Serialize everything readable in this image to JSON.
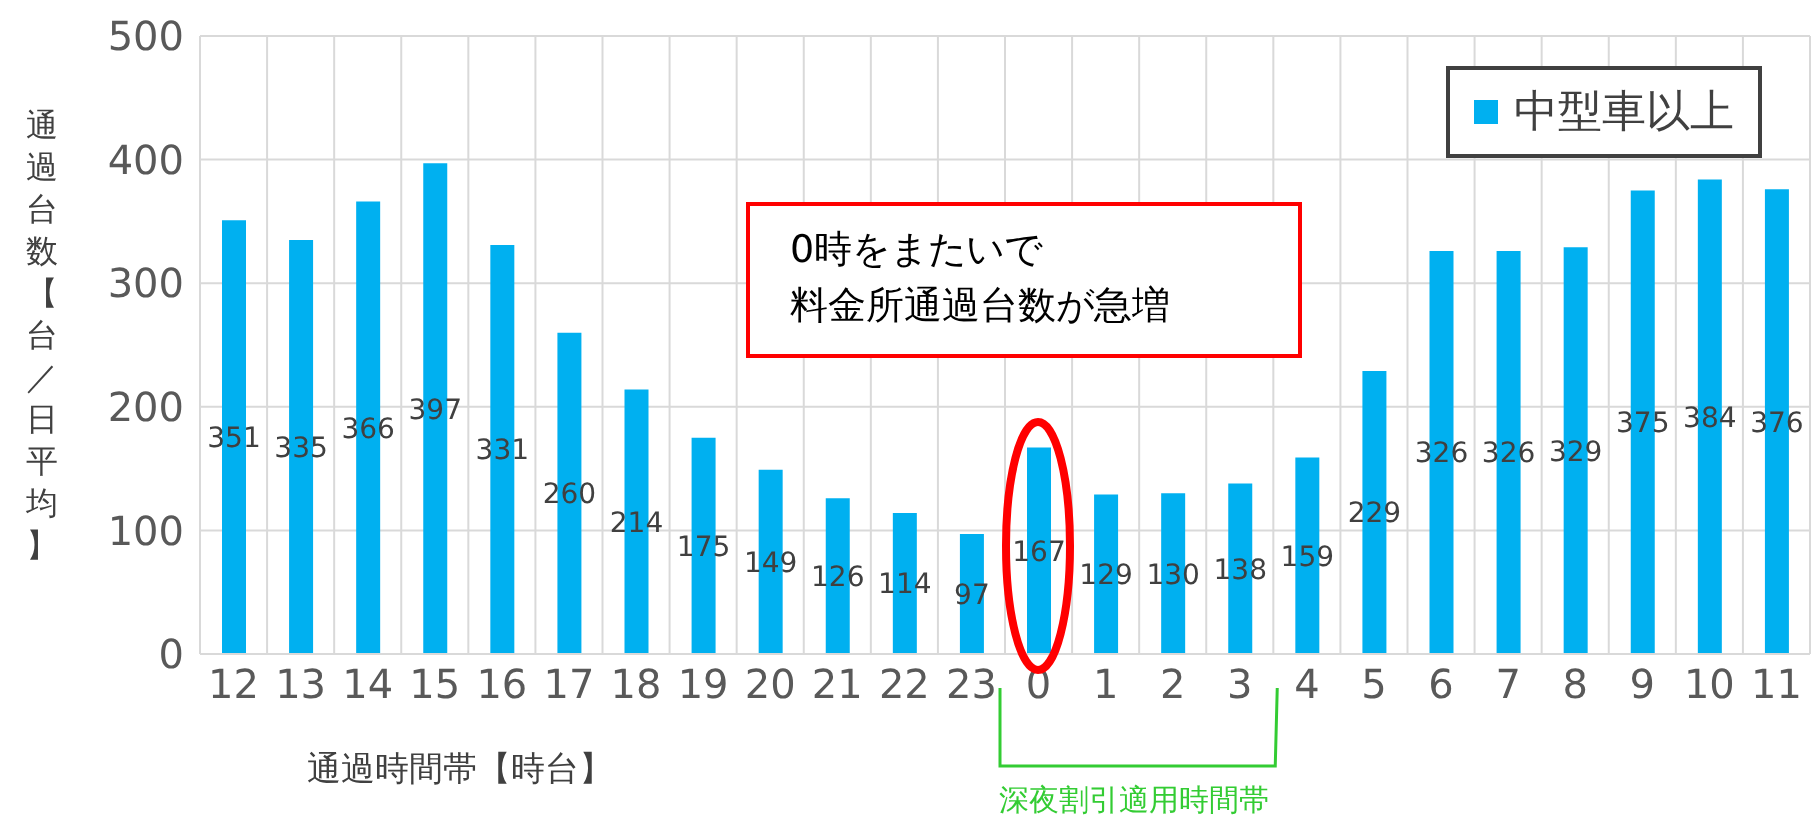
{
  "chart_data": {
    "type": "bar",
    "xlabel": "通過時間帯【時台】",
    "ylabel": "通過台数【台／日平均】",
    "categories": [
      "12",
      "13",
      "14",
      "15",
      "16",
      "17",
      "18",
      "19",
      "20",
      "21",
      "22",
      "23",
      "0",
      "1",
      "2",
      "3",
      "4",
      "5",
      "6",
      "7",
      "8",
      "9",
      "10",
      "11"
    ],
    "series": [
      {
        "name": "中型車以上",
        "color": "#00b0f0",
        "values": [
          351,
          335,
          366,
          397,
          331,
          260,
          214,
          175,
          149,
          126,
          114,
          97,
          167,
          129,
          130,
          138,
          159,
          229,
          326,
          326,
          329,
          375,
          384,
          376
        ]
      }
    ],
    "ylim": [
      0,
      500
    ],
    "yticks": [
      0,
      100,
      200,
      300,
      400,
      500
    ],
    "grid": true,
    "legend": "top right",
    "data_labels": true,
    "annotations": [
      "0時をまたいで",
      "料金所通過台数が急増",
      "深夜割引適用時間帯"
    ]
  }
}
